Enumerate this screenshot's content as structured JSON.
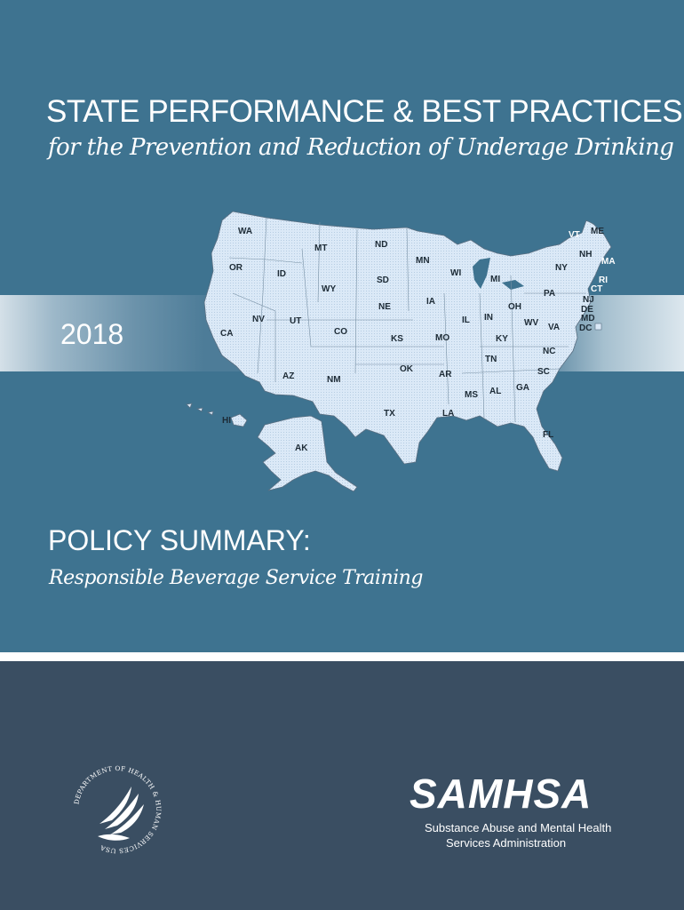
{
  "cover": {
    "title": "STATE PERFORMANCE & BEST PRACTICES",
    "subtitle": "for the Prevention and Reduction of Underage Drinking",
    "year": "2018",
    "policy_heading": "POLICY SUMMARY:",
    "policy_topic": "Responsible Beverage Service Training"
  },
  "map": {
    "labels": [
      "WA",
      "OR",
      "CA",
      "NV",
      "ID",
      "MT",
      "WY",
      "UT",
      "AZ",
      "NM",
      "CO",
      "ND",
      "SD",
      "NE",
      "KS",
      "OK",
      "TX",
      "MN",
      "IA",
      "MO",
      "AR",
      "LA",
      "WI",
      "IL",
      "MI",
      "IN",
      "OH",
      "KY",
      "TN",
      "MS",
      "AL",
      "GA",
      "FL",
      "SC",
      "NC",
      "VA",
      "WV",
      "PA",
      "NY",
      "VT",
      "NH",
      "ME",
      "MA",
      "RI",
      "CT",
      "NJ",
      "DE",
      "MD",
      "DC",
      "HI",
      "AK"
    ]
  },
  "footer": {
    "hhs_seal_text": "DEPARTMENT OF HEALTH & HUMAN SERVICES USA",
    "samhsa_logo": "SAMHSA",
    "samhsa_line1": "Substance Abuse and Mental Health",
    "samhsa_line2": "Services Administration"
  },
  "colors": {
    "top_background": "#3e7390",
    "bottom_background": "#3a4e62",
    "map_fill": "#dbe9f7",
    "text": "#ffffff"
  }
}
